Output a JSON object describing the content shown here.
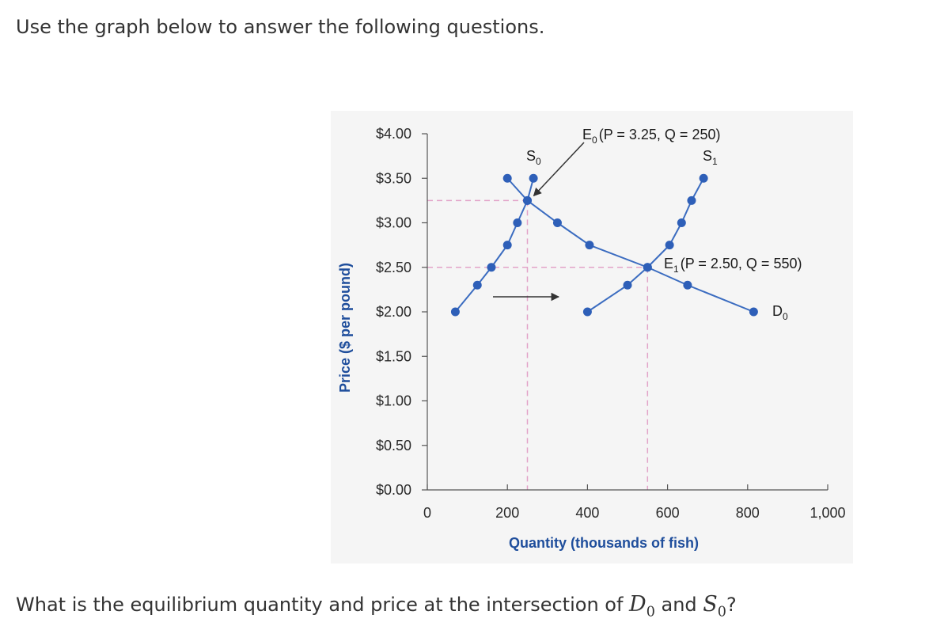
{
  "intro": "Use the graph below to answer the following questions.",
  "question": {
    "before": "What is the equilibrium quantity and price at the intersection of ",
    "d_letter": "D",
    "d_sub": "0",
    "middle": " and ",
    "s_letter": "S",
    "s_sub": "0",
    "after": "?"
  },
  "colors": {
    "curve": "#3b6cc0",
    "marker": "#2e5fb8",
    "guide": "#e2a3c8",
    "axis": "#555555",
    "axis_title": "#1f4e9c",
    "arrow": "#333333"
  },
  "chart_data": {
    "type": "line",
    "xlabel": "Quantity (thousands of fish)",
    "ylabel": "Price ($ per pound)",
    "xlim": [
      0,
      1000
    ],
    "ylim": [
      0,
      4
    ],
    "xticks": [
      0,
      200,
      400,
      600,
      800,
      1000
    ],
    "xtick_labels": [
      "0",
      "200",
      "400",
      "600",
      "800",
      "1,000"
    ],
    "yticks": [
      0,
      0.5,
      1,
      1.5,
      2,
      2.5,
      3,
      3.5,
      4
    ],
    "ytick_labels": [
      "$0.00",
      "$0.50",
      "$1.00",
      "$1.50",
      "$2.00",
      "$2.50",
      "$3.00",
      "$3.50",
      "$4.00"
    ],
    "grid": false,
    "series": [
      {
        "key": "S0",
        "label_letter": "S",
        "label_sub": "0",
        "points": [
          [
            70,
            2.0
          ],
          [
            125,
            2.3
          ],
          [
            160,
            2.5
          ],
          [
            200,
            2.75
          ],
          [
            225,
            3.0
          ],
          [
            250,
            3.25
          ],
          [
            265,
            3.5
          ]
        ]
      },
      {
        "key": "S1",
        "label_letter": "S",
        "label_sub": "1",
        "points": [
          [
            400,
            2.0
          ],
          [
            500,
            2.3
          ],
          [
            550,
            2.5
          ],
          [
            605,
            2.75
          ],
          [
            635,
            3.0
          ],
          [
            660,
            3.25
          ],
          [
            690,
            3.5
          ]
        ]
      },
      {
        "key": "D0",
        "label_letter": "D",
        "label_sub": "0",
        "points": [
          [
            200,
            3.5
          ],
          [
            250,
            3.25
          ],
          [
            325,
            3.0
          ],
          [
            405,
            2.75
          ],
          [
            550,
            2.5
          ],
          [
            650,
            2.3
          ],
          [
            815,
            2.0
          ]
        ]
      }
    ],
    "equilibria": [
      {
        "key": "E0",
        "letter": "E",
        "sub": "0",
        "text": "(P = 3.25, Q = 250)",
        "x": 250,
        "y": 3.25
      },
      {
        "key": "E1",
        "letter": "E",
        "sub": "1",
        "text": "(P = 2.50, Q = 550)",
        "x": 550,
        "y": 2.5
      }
    ]
  }
}
